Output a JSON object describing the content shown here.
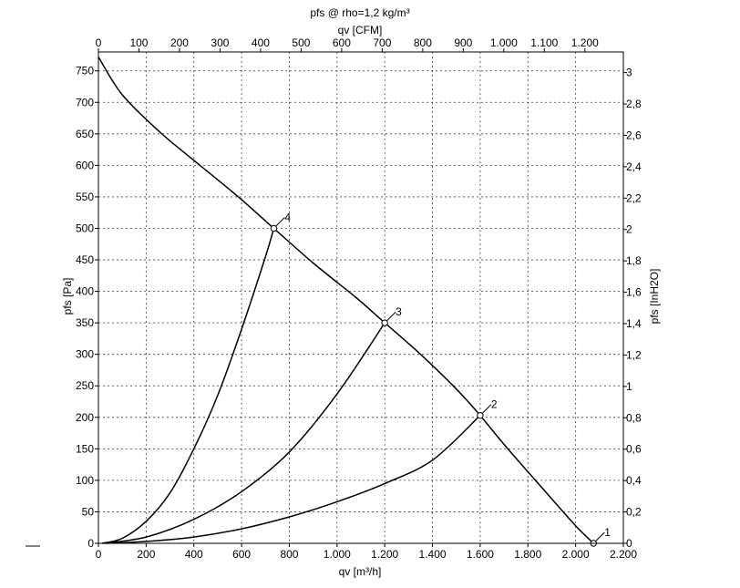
{
  "chart_data": {
    "type": "line",
    "title": "pfs @ rho=1,2 kg/m³",
    "xlabel": "qv [m³/h]",
    "ylabel": "pfs [Pa]",
    "x2label": "qv [CFM]",
    "y2label": "pfs [InH2O]",
    "xlim": [
      0,
      2200
    ],
    "ylim": [
      0,
      780
    ],
    "x_ticks": [
      0,
      200,
      400,
      600,
      800,
      1000,
      1200,
      1400,
      1600,
      1800,
      2000,
      2200
    ],
    "x_tick_labels": [
      "0",
      "200",
      "400",
      "600",
      "800",
      "1.000",
      "1.200",
      "1.400",
      "1.600",
      "1.800",
      "2.000",
      "2.200"
    ],
    "y_ticks": [
      0,
      50,
      100,
      150,
      200,
      250,
      300,
      350,
      400,
      450,
      500,
      550,
      600,
      650,
      700,
      750
    ],
    "y_tick_labels": [
      "0",
      "50",
      "100",
      "150",
      "200",
      "250",
      "300",
      "350",
      "400",
      "450",
      "500",
      "550",
      "600",
      "650",
      "700",
      "750"
    ],
    "x2_ticks_cfm": [
      0,
      100,
      200,
      300,
      400,
      500,
      600,
      700,
      800,
      900,
      1000,
      1100,
      1200
    ],
    "x2_tick_labels": [
      "0",
      "100",
      "200",
      "300",
      "400",
      "500",
      "600",
      "700",
      "800",
      "900",
      "1.000",
      "1.100",
      "1.200"
    ],
    "y2_ticks_inh2o": [
      0,
      0.2,
      0.4,
      0.6,
      0.8,
      1,
      1.2,
      1.4,
      1.6,
      1.8,
      2,
      2.2,
      2.4,
      2.6,
      2.8,
      3
    ],
    "y2_tick_labels": [
      "0",
      "0,2",
      "0,4",
      "0,6",
      "0,8",
      "1",
      "1,2",
      "1,4",
      "1,6",
      "1,8",
      "2",
      "2,2",
      "2,4",
      "2,6",
      "2,8",
      "3"
    ],
    "grid": true,
    "fan_curve": {
      "x": [
        0,
        100,
        260,
        400,
        580,
        735,
        900,
        1080,
        1200,
        1350,
        1500,
        1600,
        1700,
        1850,
        2000,
        2075
      ],
      "y": [
        772,
        712,
        652,
        608,
        552,
        500,
        445,
        390,
        350,
        300,
        245,
        203,
        157,
        92,
        28,
        0
      ]
    },
    "system_curves": [
      {
        "label": "2",
        "x": [
          30,
          200,
          400,
          600,
          800,
          1000,
          1200,
          1400,
          1600
        ],
        "y": [
          0,
          3,
          10,
          23,
          42,
          66,
          95,
          132,
          203
        ]
      },
      {
        "label": "3",
        "x": [
          20,
          200,
          400,
          600,
          800,
          1000,
          1200
        ],
        "y": [
          0,
          10,
          38,
          82,
          145,
          237,
          350
        ]
      },
      {
        "label": "4",
        "x": [
          15,
          100,
          200,
          300,
          400,
          500,
          600,
          700,
          735
        ],
        "y": [
          0,
          8,
          35,
          80,
          150,
          235,
          340,
          455,
          500
        ]
      }
    ],
    "operating_points": [
      {
        "label": "1",
        "x": 2075,
        "y": 0
      },
      {
        "label": "2",
        "x": 1600,
        "y": 203
      },
      {
        "label": "3",
        "x": 1200,
        "y": 350
      },
      {
        "label": "4",
        "x": 735,
        "y": 500
      }
    ]
  }
}
